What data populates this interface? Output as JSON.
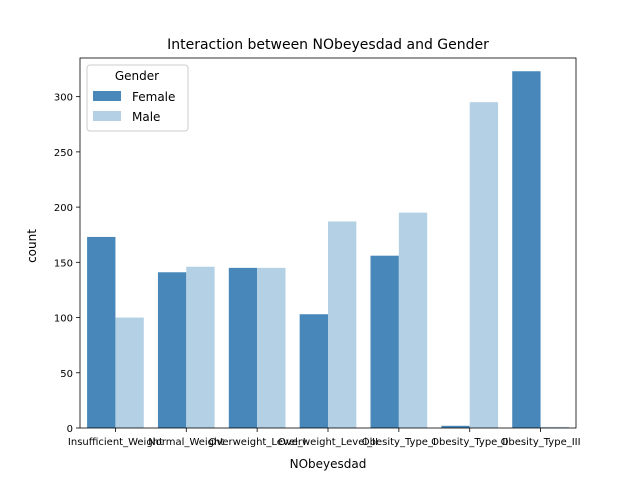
{
  "chart_data": {
    "type": "bar",
    "title": "Interaction between NObeyesdad and Gender",
    "xlabel": "NObeyesdad",
    "ylabel": "count",
    "ylim": [
      0,
      335
    ],
    "yticks": [
      0,
      50,
      100,
      150,
      200,
      250,
      300
    ],
    "categories": [
      "Insufficient_Weight",
      "Normal_Weight",
      "Overweight_Level_I",
      "Overweight_Level_II",
      "Obesity_Type_I",
      "Obesity_Type_II",
      "Obesity_Type_III"
    ],
    "series": [
      {
        "name": "Female",
        "color": "#4787b9",
        "values": [
          173,
          141,
          145,
          103,
          156,
          2,
          323
        ]
      },
      {
        "name": "Male",
        "color": "#b3d0e4",
        "values": [
          100,
          146,
          145,
          187,
          195,
          295,
          1
        ]
      }
    ],
    "legend": {
      "title": "Gender",
      "placement": "top-left"
    }
  }
}
